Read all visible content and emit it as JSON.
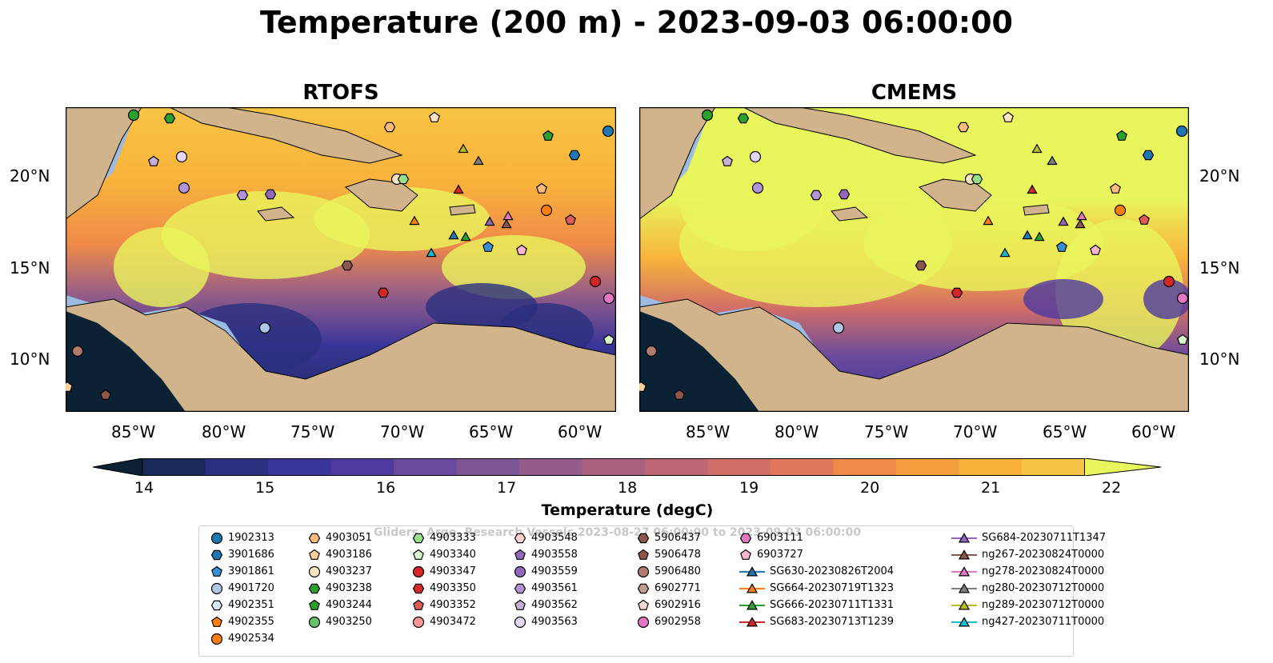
{
  "title": "Temperature (200 m) - 2023-09-03 06:00:00",
  "panels": [
    {
      "title": "RTOFS"
    },
    {
      "title": "CMEMS"
    }
  ],
  "x_ticks": [
    "85°W",
    "80°W",
    "75°W",
    "70°W",
    "65°W",
    "60°W"
  ],
  "y_ticks": [
    "20°N",
    "15°N",
    "10°N"
  ],
  "colorbar": {
    "label": "Temperature (degC)",
    "ticks": [
      "14",
      "15",
      "16",
      "17",
      "18",
      "19",
      "20",
      "21",
      "22"
    ],
    "colors": [
      "#0a2233",
      "#1a2a5a",
      "#2a2f7e",
      "#3a3599",
      "#4f3aa0",
      "#6a4a9c",
      "#7d5494",
      "#935c89",
      "#a8627f",
      "#bd6775",
      "#d16e68",
      "#e2785a",
      "#ef8a49",
      "#f49e3e",
      "#f8b23c",
      "#f8c443",
      "#e8f55c"
    ]
  },
  "watermark": "Gliders, Argo, Research Vessels 2023-08-27 06:00:00 to 2023-09-03 06:00:00",
  "chart_data": [
    {
      "type": "heatmap",
      "title": "RTOFS",
      "variable": "Temperature (degC)",
      "depth": "200 m",
      "time": "2023-09-03 06:00:00",
      "xlim": [
        -89,
        -58
      ],
      "ylim": [
        7,
        24
      ],
      "color_range": [
        14,
        22
      ]
    },
    {
      "type": "heatmap",
      "title": "CMEMS",
      "variable": "Temperature (degC)",
      "depth": "200 m",
      "time": "2023-09-03 06:00:00",
      "xlim": [
        -89,
        -58
      ],
      "ylim": [
        7,
        24
      ],
      "color_range": [
        14,
        22
      ]
    }
  ],
  "legend": [
    {
      "label": "1902313",
      "marker": "circle",
      "color": "#1f77b4"
    },
    {
      "label": "3901686",
      "marker": "hexagon",
      "color": "#1f77b4"
    },
    {
      "label": "3901861",
      "marker": "pentagon",
      "color": "#3a8fd0"
    },
    {
      "label": "4901720",
      "marker": "circle",
      "color": "#aec7e8"
    },
    {
      "label": "4902351",
      "marker": "hexagon",
      "color": "#d7e6f5"
    },
    {
      "label": "4902355",
      "marker": "pentagon",
      "color": "#ff7f0e"
    },
    {
      "label": "4902534",
      "marker": "circle",
      "color": "#ff7f0e"
    },
    {
      "label": "4903051",
      "marker": "hexagon",
      "color": "#ffbb78"
    },
    {
      "label": "4903186",
      "marker": "pentagon",
      "color": "#ffcf99"
    },
    {
      "label": "4903237",
      "marker": "circle",
      "color": "#ffe4c4"
    },
    {
      "label": "4903238",
      "marker": "hexagon",
      "color": "#2ca02c"
    },
    {
      "label": "4903244",
      "marker": "pentagon",
      "color": "#2ca02c"
    },
    {
      "label": "4903250",
      "marker": "circle",
      "color": "#66c266"
    },
    {
      "label": "4903333",
      "marker": "hexagon",
      "color": "#98df8a"
    },
    {
      "label": "4903340",
      "marker": "pentagon",
      "color": "#d8f5cc"
    },
    {
      "label": "4903347",
      "marker": "circle",
      "color": "#d62728"
    },
    {
      "label": "4903350",
      "marker": "hexagon",
      "color": "#d62728"
    },
    {
      "label": "4903352",
      "marker": "pentagon",
      "color": "#e05a5a"
    },
    {
      "label": "4903472",
      "marker": "circle",
      "color": "#ff9896"
    },
    {
      "label": "4903548",
      "marker": "hexagon",
      "color": "#ffd0cc"
    },
    {
      "label": "4903558",
      "marker": "pentagon",
      "color": "#9467bd"
    },
    {
      "label": "4903559",
      "marker": "circle",
      "color": "#9467bd"
    },
    {
      "label": "4903561",
      "marker": "hexagon",
      "color": "#b294d6"
    },
    {
      "label": "4903562",
      "marker": "pentagon",
      "color": "#c5b0d5"
    },
    {
      "label": "4903563",
      "marker": "circle",
      "color": "#e4d6f0"
    },
    {
      "label": "5906437",
      "marker": "hexagon",
      "color": "#8c564b"
    },
    {
      "label": "5906478",
      "marker": "pentagon",
      "color": "#8c564b"
    },
    {
      "label": "5906480",
      "marker": "circle",
      "color": "#b07a6e"
    },
    {
      "label": "6902771",
      "marker": "hexagon",
      "color": "#c49c94"
    },
    {
      "label": "6902916",
      "marker": "pentagon",
      "color": "#f2d6cf"
    },
    {
      "label": "6902958",
      "marker": "circle",
      "color": "#e377c2"
    },
    {
      "label": "6903111",
      "marker": "hexagon",
      "color": "#e377c2"
    },
    {
      "label": "6903727",
      "marker": "pentagon",
      "color": "#f7b6d2"
    },
    {
      "label": "SG630-20230826T2004",
      "marker": "triangle-line",
      "color": "#1f77b4"
    },
    {
      "label": "SG664-20230719T1323",
      "marker": "triangle-line",
      "color": "#ff7f0e"
    },
    {
      "label": "SG666-20230711T1331",
      "marker": "triangle-line",
      "color": "#2ca02c"
    },
    {
      "label": "SG683-20230713T1239",
      "marker": "triangle-line",
      "color": "#d62728"
    },
    {
      "label": "SG684-20230711T1347",
      "marker": "triangle-line",
      "color": "#9467bd"
    },
    {
      "label": "ng267-20230824T0000",
      "marker": "triangle-line",
      "color": "#8c564b"
    },
    {
      "label": "ng278-20230824T0000",
      "marker": "triangle-line",
      "color": "#e377c2"
    },
    {
      "label": "ng280-20230712T0000",
      "marker": "triangle-line",
      "color": "#7f7f7f"
    },
    {
      "label": "ng289-20230712T0000",
      "marker": "triangle-line",
      "color": "#bcbd22"
    },
    {
      "label": "ng427-20230711T0000",
      "marker": "triangle-line",
      "color": "#17becf"
    }
  ]
}
